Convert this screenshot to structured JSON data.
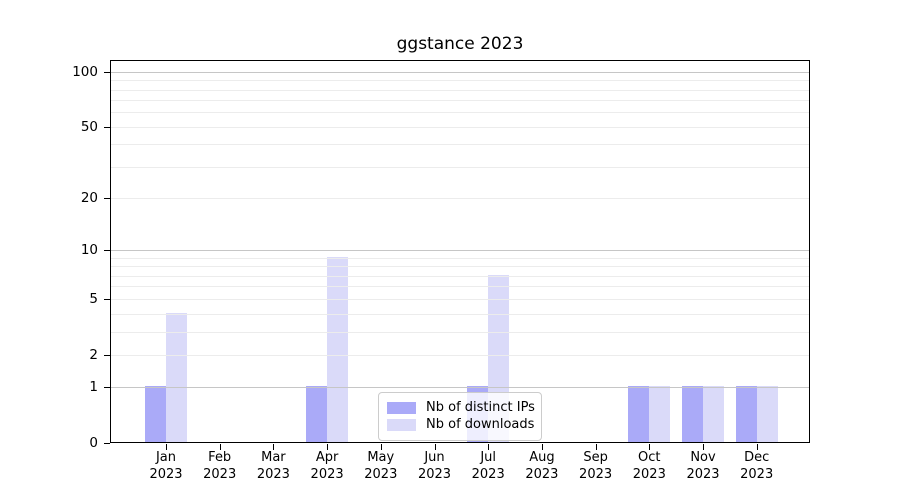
{
  "chart_data": {
    "type": "bar",
    "title": "ggstance 2023",
    "categories": [
      "Jan",
      "Feb",
      "Mar",
      "Apr",
      "May",
      "Jun",
      "Jul",
      "Aug",
      "Sep",
      "Oct",
      "Nov",
      "Dec"
    ],
    "category_year": "2023",
    "series": [
      {
        "name": "Nb of distinct IPs",
        "color": "#aaaaf8",
        "values": [
          1,
          0,
          0,
          1,
          0,
          0,
          1,
          0,
          0,
          1,
          1,
          1
        ]
      },
      {
        "name": "Nb of downloads",
        "color": "#dadaf9",
        "values": [
          4,
          0,
          0,
          9,
          0,
          0,
          7,
          0,
          0,
          1,
          1,
          1
        ]
      }
    ],
    "xlabel": "",
    "ylabel": "",
    "y_axis": {
      "scale": "log1p",
      "ticks": [
        0,
        1,
        2,
        5,
        10,
        20,
        50,
        100
      ],
      "minor_gridlines": [
        2,
        3,
        4,
        5,
        6,
        7,
        8,
        9,
        20,
        30,
        40,
        50,
        60,
        70,
        80,
        90
      ],
      "major_gridlines": [
        1,
        10,
        100
      ],
      "ylim": [
        0,
        116
      ]
    },
    "grid": true,
    "legend": {
      "position": "lower center",
      "entries": [
        "Nb of distinct IPs",
        "Nb of downloads"
      ]
    }
  },
  "colors": {
    "background": "#ffffff",
    "axis": "#000000",
    "minor_grid": "#ececec",
    "major_grid": "#c6c6c6",
    "legend_border": "#cccccc",
    "bar_distinct_ips": "#aaaaf8",
    "bar_downloads": "#dadaf9"
  }
}
